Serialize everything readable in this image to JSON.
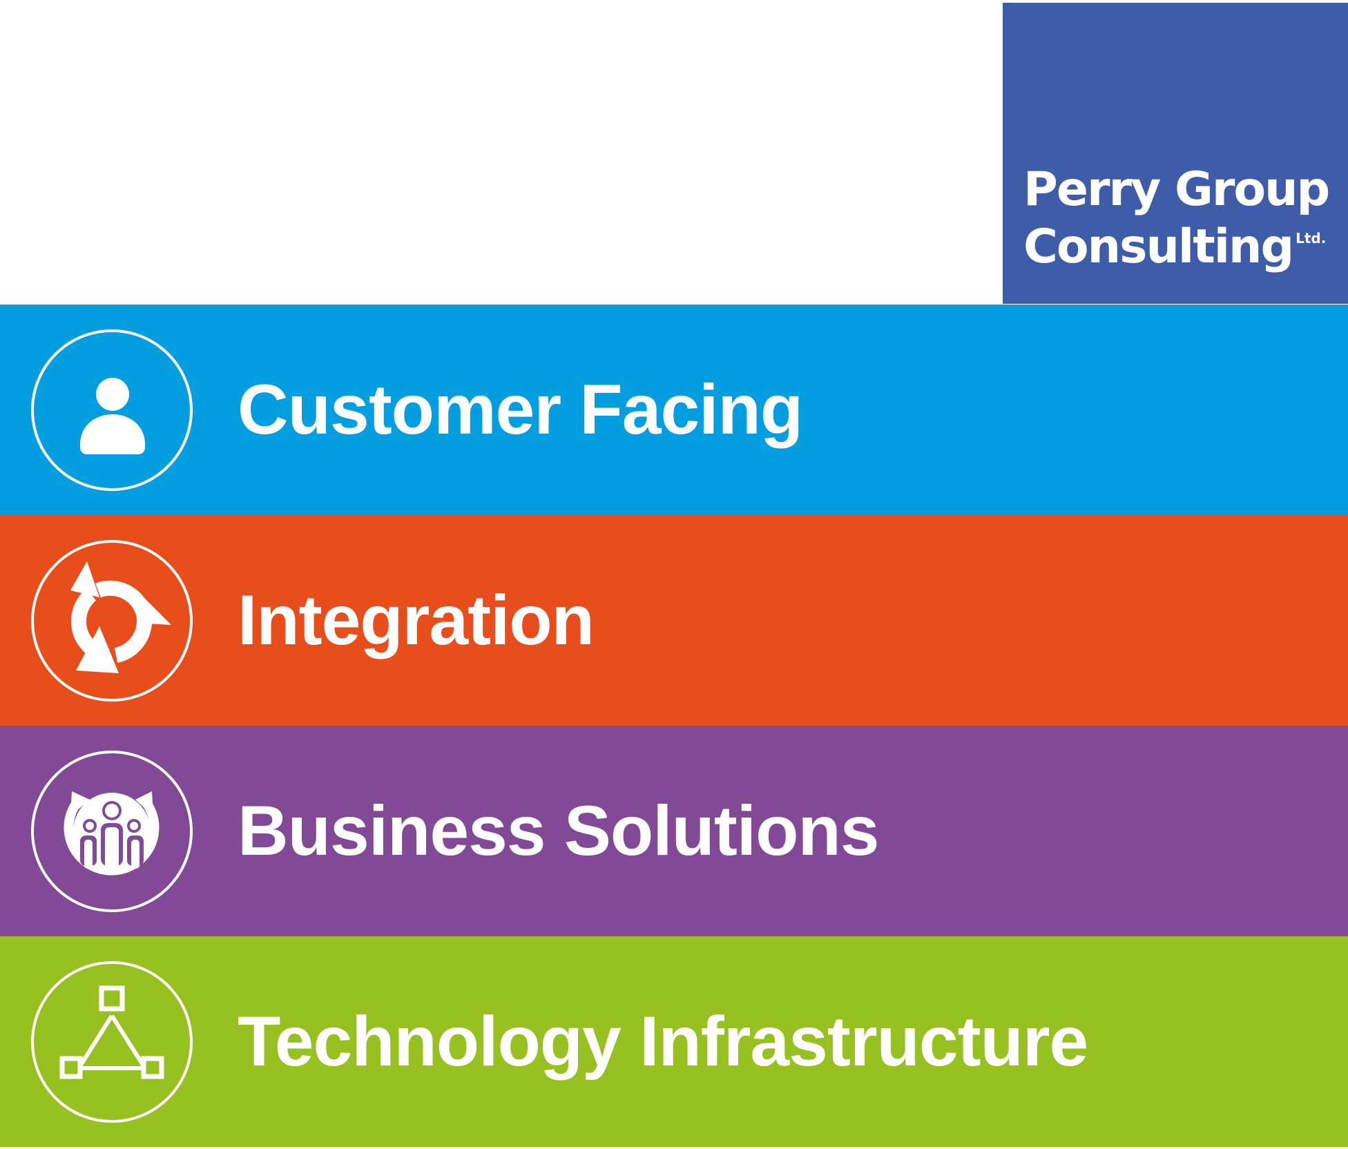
{
  "logo": {
    "line1": "Perry Group",
    "line2": "Consulting",
    "suffix": "Ltd.",
    "color": "#3f5ca9"
  },
  "layers": [
    {
      "label": "Customer Facing",
      "icon": "person-icon",
      "color": "#029ee0"
    },
    {
      "label": "Integration",
      "icon": "refresh-cycle-icon",
      "color": "#e84e1c"
    },
    {
      "label": "Business Solutions",
      "icon": "team-cycle-icon",
      "color": "#824996"
    },
    {
      "label": "Technology Infrastructure",
      "icon": "network-nodes-icon",
      "color": "#97c120"
    }
  ]
}
